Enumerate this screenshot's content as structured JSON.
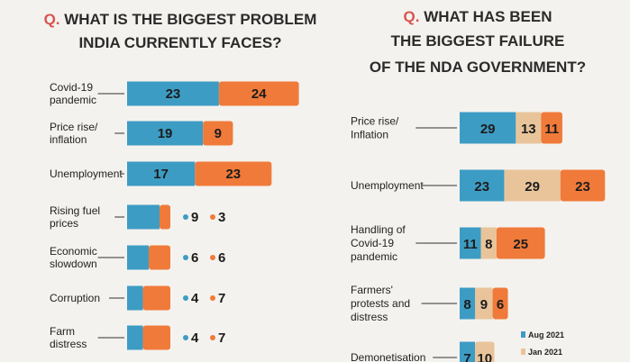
{
  "chart_data": [
    {
      "type": "bar",
      "title_marker": "Q.",
      "title": [
        "WHAT IS THE BIGGEST PROBLEM",
        "INDIA CURRENTLY FACES?"
      ],
      "categories": [
        [
          "Covid-19",
          "pandemic"
        ],
        [
          "Price rise/",
          "inflation"
        ],
        [
          "Unemployment"
        ],
        [
          "Rising fuel",
          "prices"
        ],
        [
          "Economic",
          "slowdown"
        ],
        [
          "Corruption"
        ],
        [
          "Farm",
          "distress"
        ]
      ],
      "series": [
        {
          "name": "",
          "color": "#3d9cc4",
          "values": [
            23,
            19,
            17,
            9,
            6,
            4,
            4
          ]
        },
        {
          "name": "",
          "color": "#f07a3a",
          "values": [
            24,
            9,
            23,
            3,
            6,
            7,
            7
          ]
        }
      ]
    },
    {
      "type": "bar",
      "title_marker": "Q.",
      "title": [
        "WHAT HAS BEEN",
        "THE BIGGEST FAILURE",
        "OF THE NDA GOVERNMENT?"
      ],
      "categories": [
        [
          "Price rise/",
          "Inflation"
        ],
        [
          "Unemployment"
        ],
        [
          "Handling of",
          "Covid-19",
          "pandemic"
        ],
        [
          "Farmers'",
          "protests and",
          "distress"
        ],
        [
          "Demonetisation"
        ]
      ],
      "series": [
        {
          "name": "Aug 2021",
          "color": "#3d9cc4",
          "values": [
            29,
            23,
            11,
            8,
            7
          ]
        },
        {
          "name": "Jan 2021",
          "color": "#e9c49a",
          "values": [
            13,
            29,
            8,
            9,
            10
          ]
        },
        {
          "name": "",
          "color": "#f07a3a",
          "values": [
            11,
            23,
            25,
            6,
            null
          ]
        }
      ],
      "legend": {
        "placement": "bottom-right",
        "entries": [
          "Aug 2021",
          "Jan 2021"
        ]
      }
    }
  ]
}
